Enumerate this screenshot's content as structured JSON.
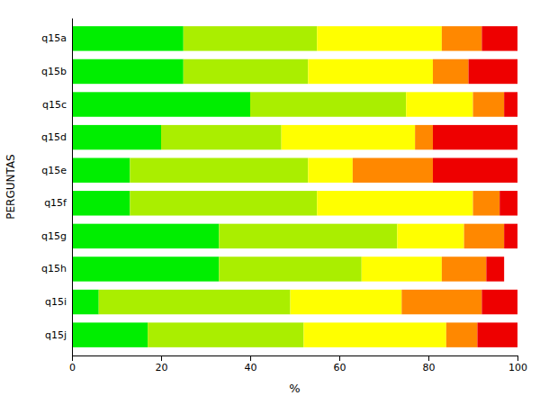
{
  "chart_data": {
    "type": "bar",
    "orientation": "horizontal",
    "stacked": true,
    "categories": [
      "q15a",
      "q15b",
      "q15c",
      "q15d",
      "q15e",
      "q15f",
      "q15g",
      "q15h",
      "q15i",
      "q15j"
    ],
    "series": [
      {
        "color": "#00EE00",
        "values": [
          25,
          25,
          40,
          20,
          13,
          13,
          33,
          33,
          6,
          17
        ]
      },
      {
        "color": "#AAEE00",
        "values": [
          30,
          28,
          35,
          27,
          40,
          42,
          40,
          32,
          43,
          35
        ]
      },
      {
        "color": "#FFFF00",
        "values": [
          28,
          28,
          15,
          30,
          10,
          35,
          15,
          18,
          25,
          32
        ]
      },
      {
        "color": "#FF8800",
        "values": [
          9,
          8,
          7,
          4,
          18,
          6,
          9,
          10,
          18,
          7
        ]
      },
      {
        "color": "#EE0000",
        "values": [
          8,
          11,
          3,
          19,
          19,
          4,
          3,
          4,
          8,
          9
        ]
      }
    ],
    "xlabel": "%",
    "ylabel": "PERGUNTAS",
    "xlim": [
      0,
      100
    ],
    "xticks": [
      0,
      20,
      40,
      60,
      80,
      100
    ],
    "grid": false
  }
}
